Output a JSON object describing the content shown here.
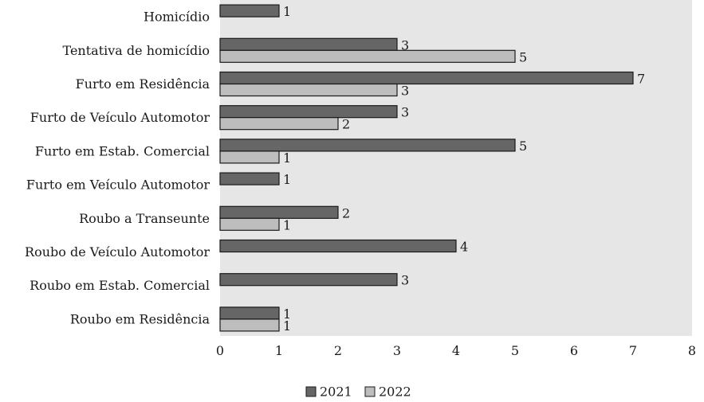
{
  "chart_data": {
    "type": "bar",
    "orientation": "horizontal",
    "categories": [
      "Homicídio",
      "Tentativa de homicídio",
      "Furto em Residência",
      "Furto de Veículo Automotor",
      "Furto em Estab. Comercial",
      "Furto em Veículo Automotor",
      "Roubo a Transeunte",
      "Roubo de Veículo Automotor",
      "Roubo em Estab. Comercial",
      "Roubo em Residência"
    ],
    "series": [
      {
        "name": "2021",
        "color": "#666666",
        "values": [
          1,
          3,
          7,
          3,
          5,
          1,
          2,
          4,
          3,
          1
        ]
      },
      {
        "name": "2022",
        "color": "#bdbdbd",
        "values": [
          null,
          5,
          3,
          2,
          1,
          null,
          1,
          null,
          null,
          1
        ]
      }
    ],
    "xlim": [
      0,
      8
    ],
    "xticks": [
      0,
      1,
      2,
      3,
      4,
      5,
      6,
      7,
      8
    ],
    "plot_background": "#e6e6e6",
    "legend_position": "bottom",
    "grid": false
  }
}
